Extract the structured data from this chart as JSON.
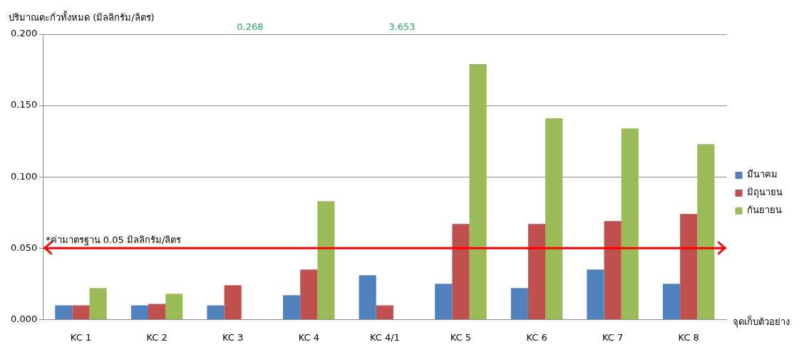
{
  "chart_data": {
    "type": "bar",
    "ylabel": "ปริมาณตะกั่วทั้งหมด (มิลลิกรัม/ลิตร)",
    "xlabel": "จุดเก็บตัวอย่าง",
    "categories": [
      "KC 1",
      "KC 2",
      "KC 3",
      "KC 4",
      "KC 4/1",
      "KC 5",
      "KC 6",
      "KC 7",
      "KC 8"
    ],
    "series": [
      {
        "name": "มีนาคม",
        "color": "#4f81bd",
        "values": [
          0.01,
          0.01,
          0.01,
          0.017,
          0.031,
          0.025,
          0.022,
          0.035,
          0.025
        ]
      },
      {
        "name": "มิถุนายน",
        "color": "#c0504d",
        "values": [
          0.01,
          0.011,
          0.024,
          0.035,
          0.01,
          0.067,
          0.067,
          0.069,
          0.074
        ]
      },
      {
        "name": "กันยายน",
        "color": "#9bbb59",
        "values": [
          0.022,
          0.018,
          null,
          0.083,
          null,
          0.179,
          0.141,
          0.134,
          0.123
        ],
        "value_labels": [
          null,
          null,
          "0.268",
          null,
          "3.653",
          null,
          null,
          null,
          null
        ]
      }
    ],
    "ylim": [
      0,
      0.2
    ],
    "yticks": [
      {
        "value": 0,
        "label": "0.000"
      },
      {
        "value": 0.05,
        "label": "0.050"
      },
      {
        "value": 0.1,
        "label": "0.100"
      },
      {
        "value": 0.15,
        "label": "0.150"
      },
      {
        "value": 0.2,
        "label": "0.200"
      }
    ],
    "ref_lines": [
      {
        "axis": "y",
        "value": 0.05,
        "label": "*ค่ามาตรฐาน 0.05 มิลลิกรัม/ลิตร",
        "color": "#ff0000"
      }
    ],
    "grid": "y",
    "legend": "right"
  }
}
